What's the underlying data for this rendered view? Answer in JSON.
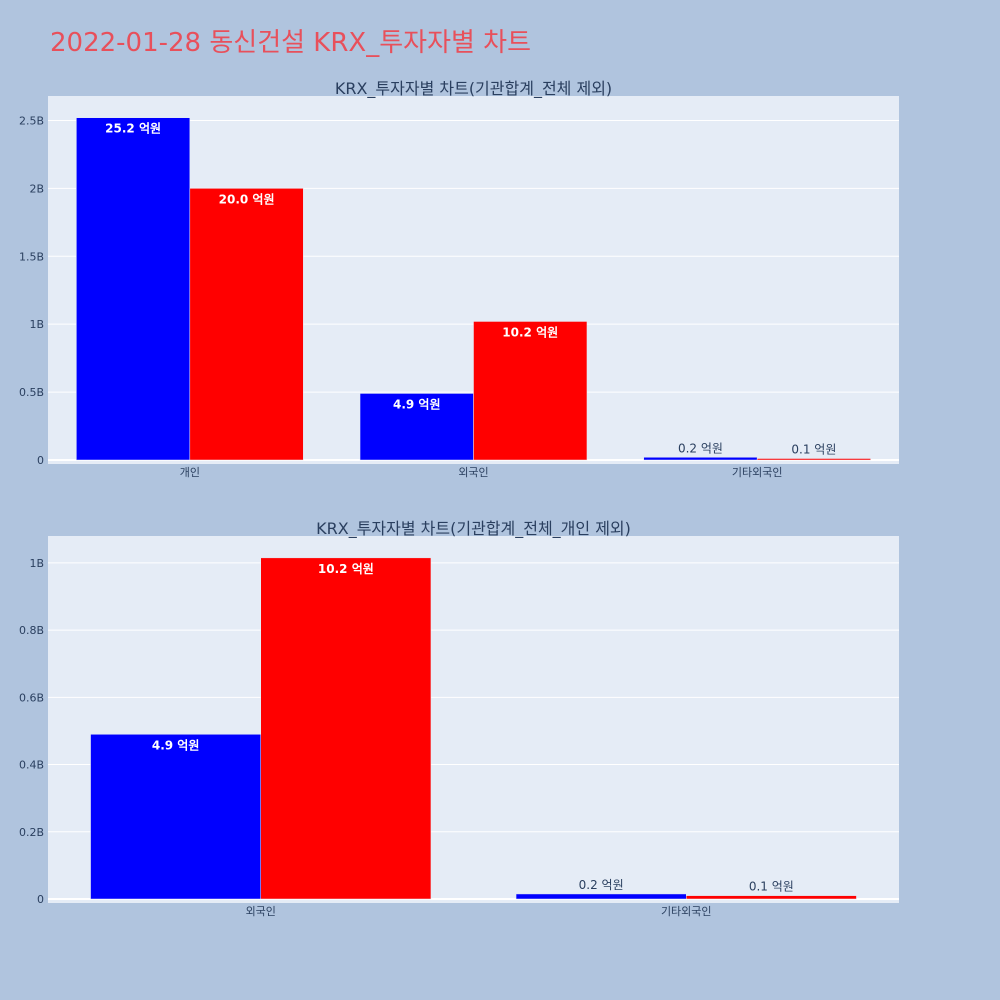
{
  "page": {
    "title": "2022-01-28 동신건설 KRX_투자자별 차트",
    "background": "#b0c4de",
    "plot_background": "#e5ecf6",
    "title_color": "#e8505b"
  },
  "chart_data": [
    {
      "type": "bar",
      "title": "KRX_투자자별 차트(기관합계_전체 제외)",
      "categories": [
        "개인",
        "외국인",
        "기타외국인"
      ],
      "series": [
        {
          "color": "#0000ff",
          "values": [
            2520000000,
            490000000,
            20000000
          ],
          "labels": [
            "25.2 억원",
            "4.9 억원",
            "0.2 억원"
          ]
        },
        {
          "color": "#ff0000",
          "values": [
            2000000000,
            1020000000,
            10000000
          ],
          "labels": [
            "20.0 억원",
            "10.2 억원",
            "0.1 억원"
          ]
        }
      ],
      "ylim": [
        0,
        2680000000
      ],
      "yticks": [
        0,
        500000000,
        1000000000,
        1500000000,
        2000000000,
        2500000000
      ],
      "ytick_labels": [
        "0",
        "0.5B",
        "1B",
        "1.5B",
        "2B",
        "2.5B"
      ],
      "grid": true
    },
    {
      "type": "bar",
      "title": "KRX_투자자별 차트(기관합계_전체_개인 제외)",
      "categories": [
        "외국인",
        "기타외국인"
      ],
      "series": [
        {
          "color": "#0000ff",
          "values": [
            490000000,
            15000000
          ],
          "labels": [
            "4.9 억원",
            "0.2 억원"
          ]
        },
        {
          "color": "#ff0000",
          "values": [
            1015000000,
            10000000
          ],
          "labels": [
            "10.2 억원",
            "0.1 억원"
          ]
        }
      ],
      "ylim": [
        0,
        1080000000
      ],
      "yticks": [
        0,
        200000000,
        400000000,
        600000000,
        800000000,
        1000000000
      ],
      "ytick_labels": [
        "0",
        "0.2B",
        "0.4B",
        "0.6B",
        "0.8B",
        "1B"
      ],
      "grid": true
    }
  ]
}
